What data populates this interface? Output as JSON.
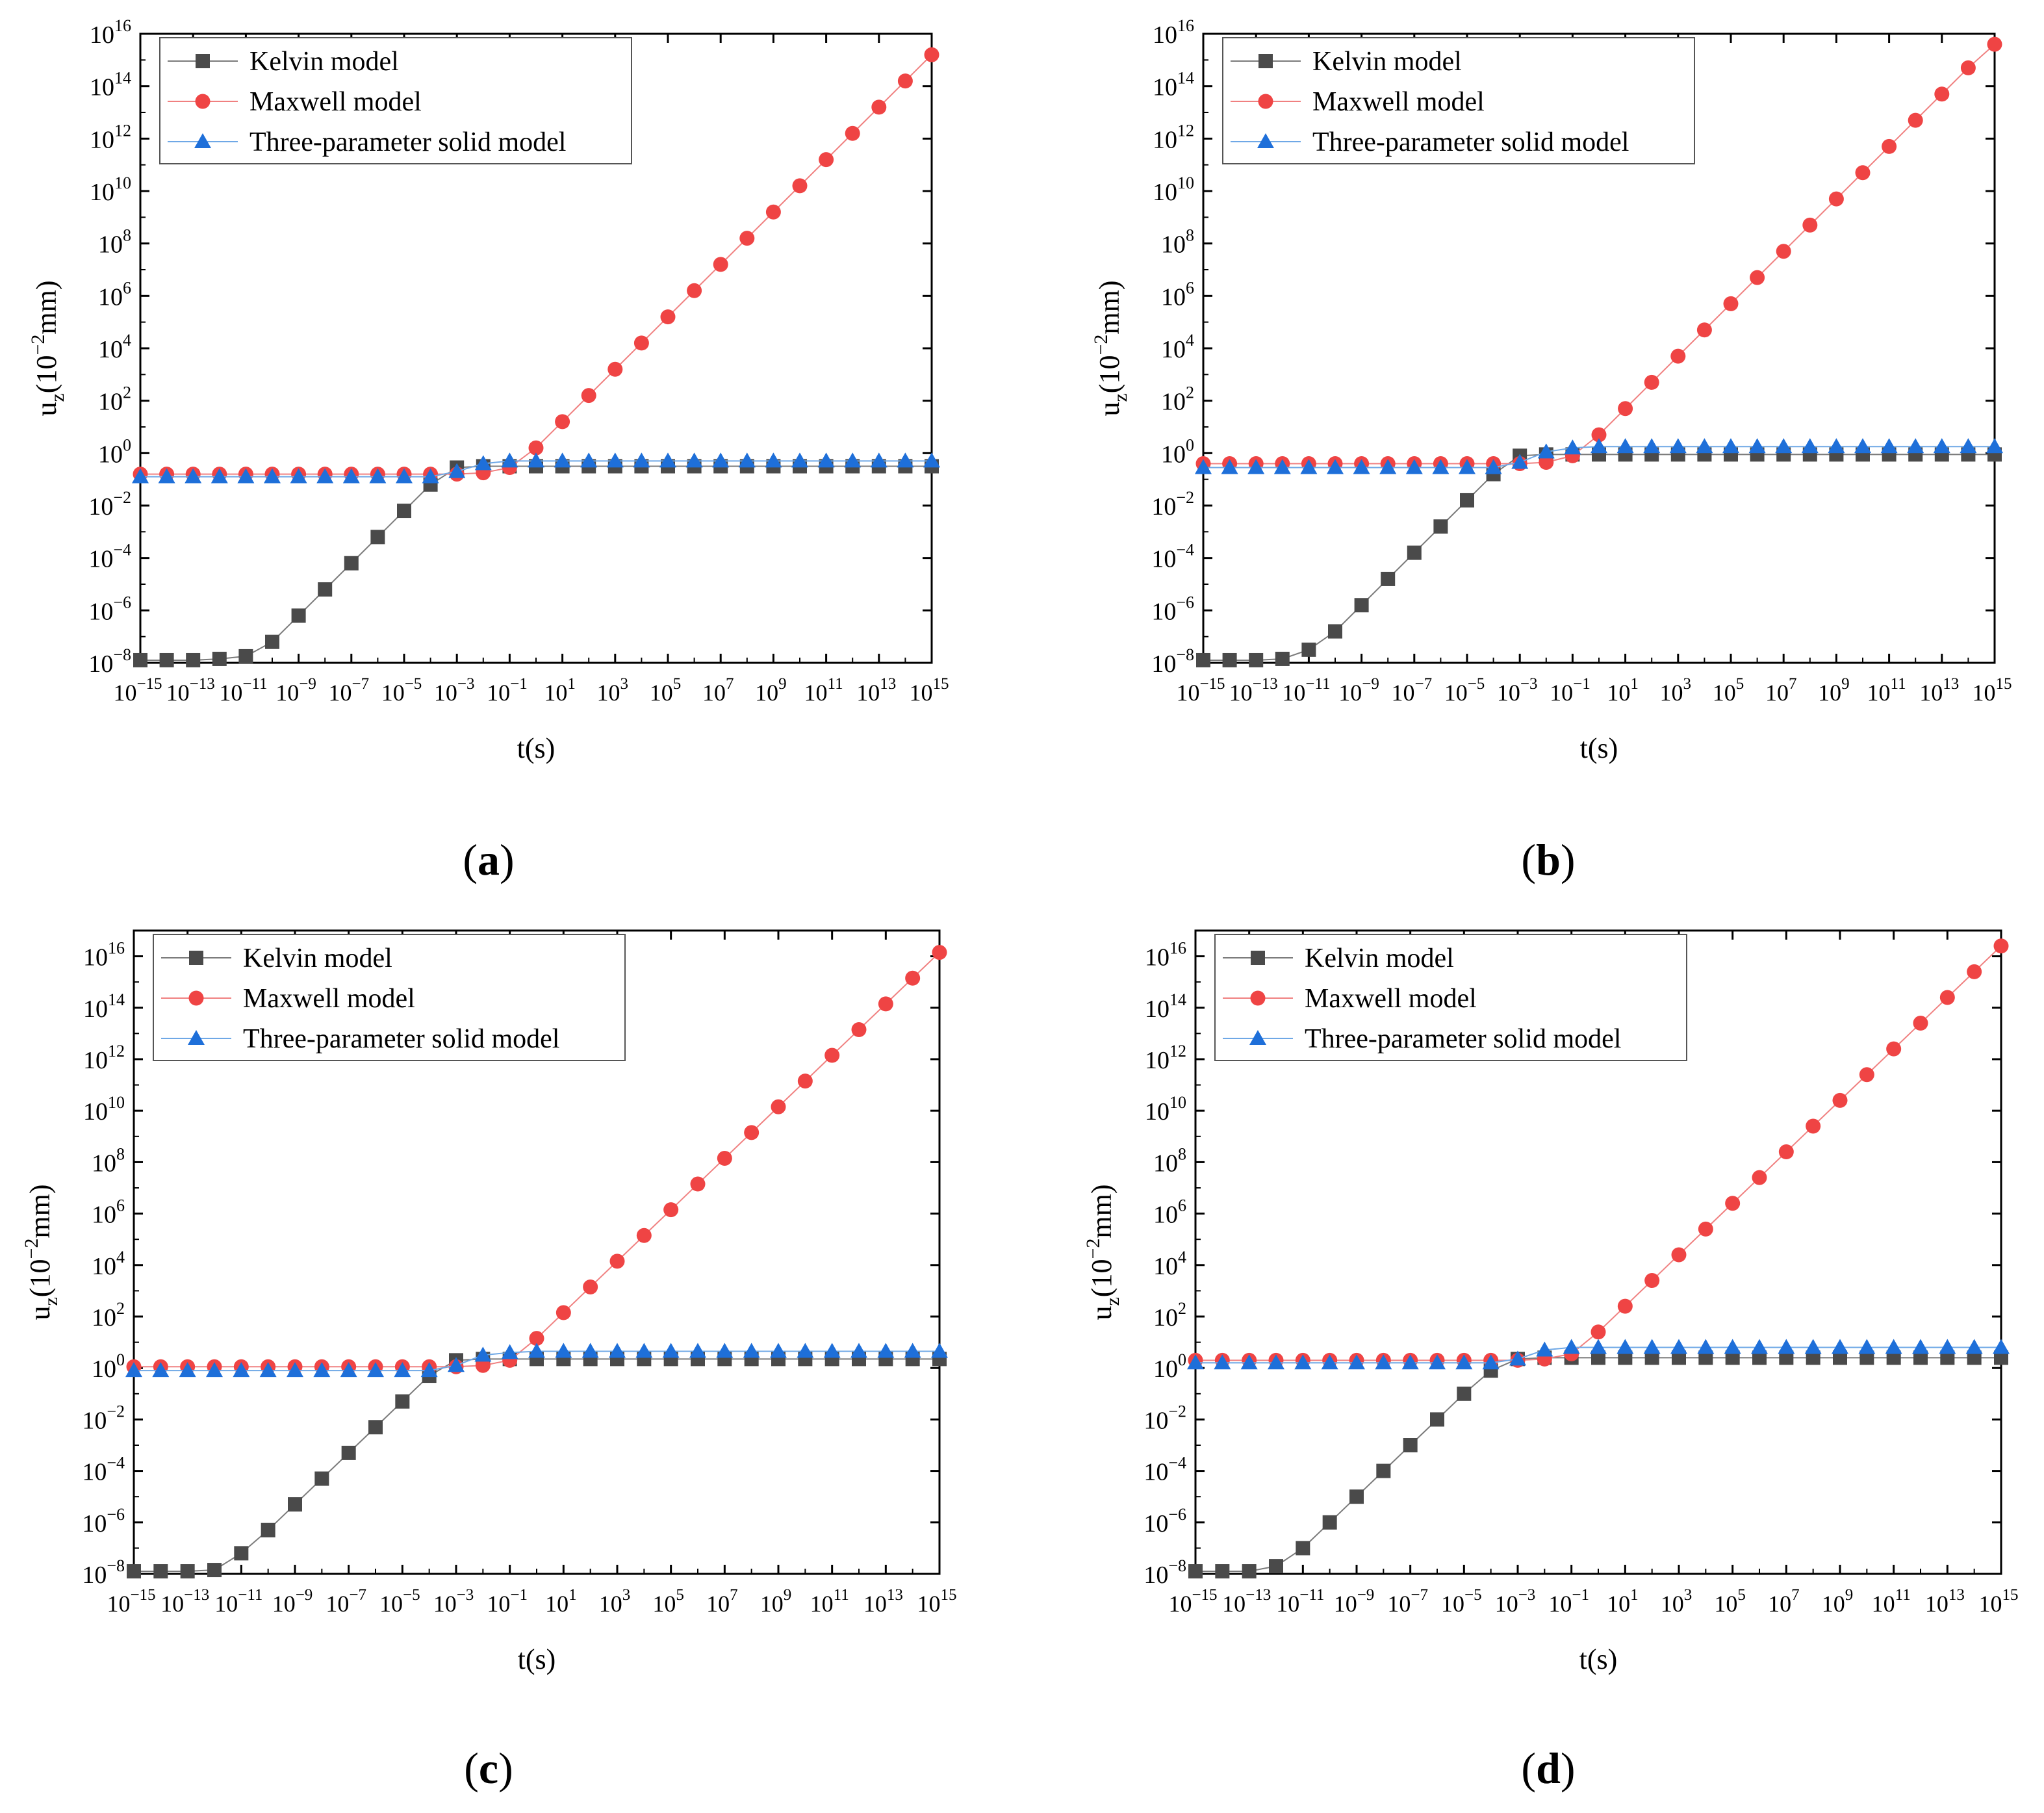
{
  "chart_data": [
    {
      "id": "a",
      "caption_letter": "a",
      "type": "scatter",
      "xscale": "log",
      "yscale": "log",
      "xlim_exp": [
        -15,
        15
      ],
      "ylim_exp": [
        -8,
        16
      ],
      "xlabel_main": "t(s)",
      "ylabel_main": "u",
      "ylabel_sub": "z",
      "ylabel_paren_open": "(10",
      "ylabel_sup": "−2",
      "ylabel_unit": "mm)",
      "tick_base": "10",
      "x_tick_exps": [
        "−15",
        "−13",
        "−11",
        "−9",
        "−7",
        "−5",
        "−3",
        "−1",
        "1",
        "3",
        "5",
        "7",
        "9",
        "11",
        "13",
        "15"
      ],
      "y_tick_exps": [
        "−8",
        "−6",
        "−4",
        "−2",
        "0",
        "2",
        "4",
        "6",
        "8",
        "10",
        "12",
        "14",
        "16"
      ],
      "legend_position": "top-left",
      "x_exp": [
        -15,
        -14,
        -13,
        -12,
        -11,
        -10,
        -9,
        -8,
        -7,
        -6,
        -5,
        -4,
        -3,
        -2,
        -1,
        0,
        1,
        2,
        3,
        4,
        5,
        6,
        7,
        8,
        9,
        10,
        11,
        12,
        13,
        14,
        15
      ],
      "series": [
        {
          "name": "Kelvin model",
          "marker": "square",
          "color": "#4a4a4a",
          "line_color": "#7a7a7a",
          "y_exp": [
            -7.9,
            -7.9,
            -7.9,
            -7.85,
            -7.75,
            -7.2,
            -6.2,
            -5.2,
            -4.2,
            -3.2,
            -2.2,
            -1.2,
            -0.55,
            -0.5,
            -0.5,
            -0.5,
            -0.5,
            -0.5,
            -0.5,
            -0.5,
            -0.5,
            -0.5,
            -0.5,
            -0.5,
            -0.5,
            -0.5,
            -0.5,
            -0.5,
            -0.5,
            -0.5,
            -0.5
          ]
        },
        {
          "name": "Maxwell model",
          "marker": "circle",
          "color": "#ef4444",
          "line_color": "#f08080",
          "y_exp": [
            -0.8,
            -0.8,
            -0.8,
            -0.8,
            -0.8,
            -0.8,
            -0.8,
            -0.8,
            -0.8,
            -0.8,
            -0.8,
            -0.8,
            -0.8,
            -0.75,
            -0.55,
            0.2,
            1.2,
            2.2,
            3.2,
            4.2,
            5.2,
            6.2,
            7.2,
            8.2,
            9.2,
            10.2,
            11.2,
            12.2,
            13.2,
            14.2,
            15.2
          ]
        },
        {
          "name": "Three-parameter solid model",
          "marker": "triangle",
          "color": "#1e6fd9",
          "line_color": "#6fa8e6",
          "y_exp": [
            -0.9,
            -0.9,
            -0.9,
            -0.9,
            -0.9,
            -0.9,
            -0.9,
            -0.9,
            -0.9,
            -0.9,
            -0.9,
            -0.9,
            -0.7,
            -0.4,
            -0.3,
            -0.3,
            -0.3,
            -0.3,
            -0.3,
            -0.3,
            -0.3,
            -0.3,
            -0.3,
            -0.3,
            -0.3,
            -0.3,
            -0.3,
            -0.3,
            -0.3,
            -0.3,
            -0.3
          ]
        }
      ]
    },
    {
      "id": "b",
      "caption_letter": "b",
      "type": "scatter",
      "xscale": "log",
      "yscale": "log",
      "xlim_exp": [
        -15,
        15
      ],
      "ylim_exp": [
        -8,
        16
      ],
      "xlabel_main": "t(s)",
      "ylabel_main": "u",
      "ylabel_sub": "z",
      "ylabel_paren_open": "(10",
      "ylabel_sup": "−2",
      "ylabel_unit": "mm)",
      "tick_base": "10",
      "x_tick_exps": [
        "−15",
        "−13",
        "−11",
        "−9",
        "−7",
        "−5",
        "−3",
        "−1",
        "1",
        "3",
        "5",
        "7",
        "9",
        "11",
        "13",
        "15"
      ],
      "y_tick_exps": [
        "−8",
        "−6",
        "−4",
        "−2",
        "0",
        "2",
        "4",
        "6",
        "8",
        "10",
        "12",
        "14",
        "16"
      ],
      "legend_position": "top-left",
      "x_exp": [
        -15,
        -14,
        -13,
        -12,
        -11,
        -10,
        -9,
        -8,
        -7,
        -6,
        -5,
        -4,
        -3,
        -2,
        -1,
        0,
        1,
        2,
        3,
        4,
        5,
        6,
        7,
        8,
        9,
        10,
        11,
        12,
        13,
        14,
        15
      ],
      "series": [
        {
          "name": "Kelvin model",
          "marker": "square",
          "color": "#4a4a4a",
          "line_color": "#7a7a7a",
          "y_exp": [
            -7.9,
            -7.9,
            -7.9,
            -7.85,
            -7.5,
            -6.8,
            -5.8,
            -4.8,
            -3.8,
            -2.8,
            -1.8,
            -0.8,
            -0.1,
            -0.05,
            -0.05,
            -0.05,
            -0.05,
            -0.05,
            -0.05,
            -0.05,
            -0.05,
            -0.05,
            -0.05,
            -0.05,
            -0.05,
            -0.05,
            -0.05,
            -0.05,
            -0.05,
            -0.05,
            -0.05
          ]
        },
        {
          "name": "Maxwell model",
          "marker": "circle",
          "color": "#ef4444",
          "line_color": "#f08080",
          "y_exp": [
            -0.4,
            -0.4,
            -0.4,
            -0.4,
            -0.4,
            -0.4,
            -0.4,
            -0.4,
            -0.4,
            -0.4,
            -0.4,
            -0.4,
            -0.4,
            -0.35,
            -0.1,
            0.7,
            1.7,
            2.7,
            3.7,
            4.7,
            5.7,
            6.7,
            7.7,
            8.7,
            9.7,
            10.7,
            11.7,
            12.7,
            13.7,
            14.7,
            15.6
          ]
        },
        {
          "name": "Three-parameter solid model",
          "marker": "triangle",
          "color": "#1e6fd9",
          "line_color": "#6fa8e6",
          "y_exp": [
            -0.55,
            -0.55,
            -0.55,
            -0.55,
            -0.55,
            -0.55,
            -0.55,
            -0.55,
            -0.55,
            -0.55,
            -0.55,
            -0.55,
            -0.35,
            0.05,
            0.2,
            0.25,
            0.25,
            0.25,
            0.25,
            0.25,
            0.25,
            0.25,
            0.25,
            0.25,
            0.25,
            0.25,
            0.25,
            0.25,
            0.25,
            0.25,
            0.25
          ]
        }
      ]
    },
    {
      "id": "c",
      "caption_letter": "c",
      "type": "scatter",
      "xscale": "log",
      "yscale": "log",
      "xlim_exp": [
        -15,
        15
      ],
      "ylim_exp": [
        -8,
        17
      ],
      "xlabel_main": "t(s)",
      "ylabel_main": "u",
      "ylabel_sub": "z",
      "ylabel_paren_open": "(10",
      "ylabel_sup": "−2",
      "ylabel_unit": "mm)",
      "tick_base": "10",
      "x_tick_exps": [
        "−15",
        "−13",
        "−11",
        "−9",
        "−7",
        "−5",
        "−3",
        "−1",
        "1",
        "3",
        "5",
        "7",
        "9",
        "11",
        "13",
        "15"
      ],
      "y_tick_exps": [
        "−8",
        "−6",
        "−4",
        "−2",
        "0",
        "2",
        "4",
        "6",
        "8",
        "10",
        "12",
        "14",
        "16"
      ],
      "legend_position": "top-left",
      "x_exp": [
        -15,
        -14,
        -13,
        -12,
        -11,
        -10,
        -9,
        -8,
        -7,
        -6,
        -5,
        -4,
        -3,
        -2,
        -1,
        0,
        1,
        2,
        3,
        4,
        5,
        6,
        7,
        8,
        9,
        10,
        11,
        12,
        13,
        14,
        15
      ],
      "series": [
        {
          "name": "Kelvin model",
          "marker": "square",
          "color": "#4a4a4a",
          "line_color": "#7a7a7a",
          "y_exp": [
            -7.9,
            -7.9,
            -7.9,
            -7.85,
            -7.2,
            -6.3,
            -5.3,
            -4.3,
            -3.3,
            -2.3,
            -1.3,
            -0.3,
            0.3,
            0.35,
            0.35,
            0.35,
            0.35,
            0.35,
            0.35,
            0.35,
            0.35,
            0.35,
            0.35,
            0.35,
            0.35,
            0.35,
            0.35,
            0.35,
            0.35,
            0.35,
            0.35
          ]
        },
        {
          "name": "Maxwell model",
          "marker": "circle",
          "color": "#ef4444",
          "line_color": "#f08080",
          "y_exp": [
            0.05,
            0.05,
            0.05,
            0.05,
            0.05,
            0.05,
            0.05,
            0.05,
            0.05,
            0.05,
            0.05,
            0.05,
            0.05,
            0.1,
            0.3,
            1.15,
            2.15,
            3.15,
            4.15,
            5.15,
            6.15,
            7.15,
            8.15,
            9.15,
            10.15,
            11.15,
            12.15,
            13.15,
            14.15,
            15.15,
            16.15
          ]
        },
        {
          "name": "Three-parameter solid model",
          "marker": "triangle",
          "color": "#1e6fd9",
          "line_color": "#6fa8e6",
          "y_exp": [
            -0.1,
            -0.1,
            -0.1,
            -0.1,
            -0.1,
            -0.1,
            -0.1,
            -0.1,
            -0.1,
            -0.1,
            -0.1,
            -0.1,
            0.1,
            0.5,
            0.6,
            0.65,
            0.65,
            0.65,
            0.65,
            0.65,
            0.65,
            0.65,
            0.65,
            0.65,
            0.65,
            0.65,
            0.65,
            0.65,
            0.65,
            0.65,
            0.65
          ]
        }
      ]
    },
    {
      "id": "d",
      "caption_letter": "d",
      "type": "scatter",
      "xscale": "log",
      "yscale": "log",
      "xlim_exp": [
        -15,
        15
      ],
      "ylim_exp": [
        -8,
        17
      ],
      "xlabel_main": "t(s)",
      "ylabel_main": "u",
      "ylabel_sub": "z",
      "ylabel_paren_open": "(10",
      "ylabel_sup": "−2",
      "ylabel_unit": "mm)",
      "tick_base": "10",
      "x_tick_exps": [
        "−15",
        "−13",
        "−11",
        "−9",
        "−7",
        "−5",
        "−3",
        "−1",
        "1",
        "3",
        "5",
        "7",
        "9",
        "11",
        "13",
        "15"
      ],
      "y_tick_exps": [
        "−8",
        "−6",
        "−4",
        "−2",
        "0",
        "2",
        "4",
        "6",
        "8",
        "10",
        "12",
        "14",
        "16"
      ],
      "legend_position": "top-left",
      "x_exp": [
        -15,
        -14,
        -13,
        -12,
        -11,
        -10,
        -9,
        -8,
        -7,
        -6,
        -5,
        -4,
        -3,
        -2,
        -1,
        0,
        1,
        2,
        3,
        4,
        5,
        6,
        7,
        8,
        9,
        10,
        11,
        12,
        13,
        14,
        15
      ],
      "series": [
        {
          "name": "Kelvin model",
          "marker": "square",
          "color": "#4a4a4a",
          "line_color": "#7a7a7a",
          "y_exp": [
            -7.9,
            -7.9,
            -7.9,
            -7.7,
            -7.0,
            -6.0,
            -5.0,
            -4.0,
            -3.0,
            -2.0,
            -1.0,
            -0.1,
            0.35,
            0.4,
            0.4,
            0.4,
            0.4,
            0.4,
            0.4,
            0.4,
            0.4,
            0.4,
            0.4,
            0.4,
            0.4,
            0.4,
            0.4,
            0.4,
            0.4,
            0.4,
            0.4
          ]
        },
        {
          "name": "Maxwell model",
          "marker": "circle",
          "color": "#ef4444",
          "line_color": "#f08080",
          "y_exp": [
            0.3,
            0.3,
            0.3,
            0.3,
            0.3,
            0.3,
            0.3,
            0.3,
            0.3,
            0.3,
            0.3,
            0.3,
            0.3,
            0.35,
            0.55,
            1.4,
            2.4,
            3.4,
            4.4,
            5.4,
            6.4,
            7.4,
            8.4,
            9.4,
            10.4,
            11.4,
            12.4,
            13.4,
            14.4,
            15.4,
            16.4
          ]
        },
        {
          "name": "Three-parameter solid model",
          "marker": "triangle",
          "color": "#1e6fd9",
          "line_color": "#6fa8e6",
          "y_exp": [
            0.2,
            0.2,
            0.2,
            0.2,
            0.2,
            0.2,
            0.2,
            0.2,
            0.2,
            0.2,
            0.2,
            0.2,
            0.35,
            0.7,
            0.8,
            0.8,
            0.8,
            0.8,
            0.8,
            0.8,
            0.8,
            0.8,
            0.8,
            0.8,
            0.8,
            0.8,
            0.8,
            0.8,
            0.8,
            0.8,
            0.8
          ]
        }
      ]
    }
  ]
}
